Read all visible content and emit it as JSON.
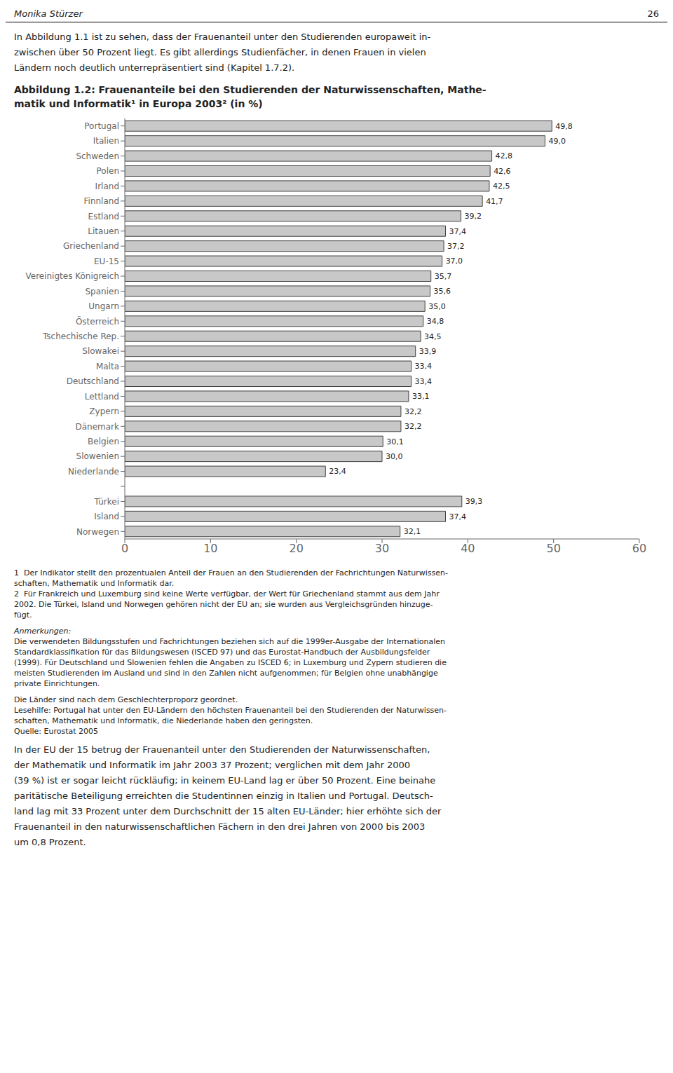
{
  "chart_data": {
    "type": "bar",
    "orientation": "horizontal",
    "title": [
      "Abbildung 1.2: Frauenanteile bei den Studierenden der Naturwissenschaften, Mathe-",
      "matik und Informatik¹ in Europa 2003² (in %)"
    ],
    "categories": [
      "Portugal",
      "Italien",
      "Schweden",
      "Polen",
      "Irland",
      "Finnland",
      "Estland",
      "Litauen",
      "Griechenland",
      "EU-15",
      "Vereinigtes Königreich",
      "Spanien",
      "Ungarn",
      "Österreich",
      "Tschechische Rep.",
      "Slowakei",
      "Malta",
      "Deutschland",
      "Lettland",
      "Zypern",
      "Dänemark",
      "Belgien",
      "Slowenien",
      "Niederlande",
      null,
      "Türkei",
      "Island",
      "Norwegen"
    ],
    "values": [
      49.8,
      49.0,
      42.8,
      42.6,
      42.5,
      41.7,
      39.2,
      37.4,
      37.2,
      37.0,
      35.7,
      35.6,
      35.0,
      34.8,
      34.5,
      33.9,
      33.4,
      33.4,
      33.1,
      32.2,
      32.2,
      30.1,
      30.0,
      23.4,
      null,
      39.3,
      37.4,
      32.1
    ],
    "value_labels": [
      "49,8",
      "49,0",
      "42,8",
      "42,6",
      "42,5",
      "41,7",
      "39,2",
      "37,4",
      "37,2",
      "37,0",
      "35,7",
      "35,6",
      "35,0",
      "34,8",
      "34,5",
      "33,9",
      "33,4",
      "33,4",
      "33,1",
      "32,2",
      "32,2",
      "30,1",
      "30,0",
      "23,4",
      null,
      "39,3",
      "37,4",
      "32,1"
    ],
    "data_labels": true,
    "color": "#c8c8c8",
    "xlim": [
      0,
      60
    ],
    "xticks": [
      0,
      10,
      20,
      30,
      40,
      50,
      60
    ],
    "grid": false,
    "annotations": [
      [
        "Monika Stürzer",
        "26"
      ],
      [
        "In Abbildung 1.1 ist zu sehen, dass der Frauenanteil unter den Studierenden europaweit in-",
        "zwischen über 50 Prozent liegt. Es gibt allerdings Studienfächer, in denen Frauen in vielen",
        "Ländern noch deutlich unterrepräsentiert sind (Kapitel 1.7.2)."
      ],
      [
        "1  Der Indikator stellt den prozentualen Anteil der Frauen an den Studierenden der Fachrichtungen Naturwissen-",
        "schaften, Mathematik und Informatik dar.",
        "2  Für Frankreich und Luxemburg sind keine Werte verfügbar, der Wert für Griechenland stammt aus dem Jahr",
        "2002. Die Türkei, Island und Norwegen gehören nicht der EU an; sie wurden aus Vergleichsgründen hinzuge-",
        "fügt."
      ],
      [
        "Anmerkungen:",
        "Die verwendeten Bildungsstufen und Fachrichtungen beziehen sich auf die 1999er-Ausgabe der Internationalen",
        "Standardklassifikation für das Bildungswesen (ISCED 97) und das Eurostat-Handbuch der Ausbildungsfelder",
        "(1999). Für Deutschland und Slowenien fehlen die Angaben zu ISCED 6; in Luxemburg und Zypern studieren die",
        "meisten Studierenden im Ausland und sind in den Zahlen nicht aufgenommen; für Belgien ohne unabhängige",
        "private Einrichtungen."
      ],
      [
        "Die Länder sind nach dem Geschlechterproporz geordnet.",
        "Lesehilfe: Portugal hat unter den EU-Ländern den höchsten Frauenanteil bei den Studierenden der Naturwissen-",
        "schaften, Mathematik und Informatik, die Niederlande haben den geringsten.",
        "Quelle: Eurostat 2005"
      ],
      [
        "In der EU der 15 betrug der Frauenanteil unter den Studierenden der Naturwissenschaften,",
        "der Mathematik und Informatik im Jahr 2003 37 Prozent; verglichen mit dem Jahr 2000",
        "(39 %) ist er sogar leicht rückläufig; in keinem EU-Land lag er über 50 Prozent. Eine beinahe",
        "paritätische Beteiligung erreichten die Studentinnen einzig in Italien und Portugal. Deutsch-",
        "land lag mit 33 Prozent unter dem Durchschnitt der 15 alten EU-Länder; hier erhöhte sich der",
        "Frauenanteil in den naturwissenschaftlichen Fächern in den drei Jahren von 2000 bis 2003",
        "um 0,8 Prozent."
      ]
    ]
  }
}
